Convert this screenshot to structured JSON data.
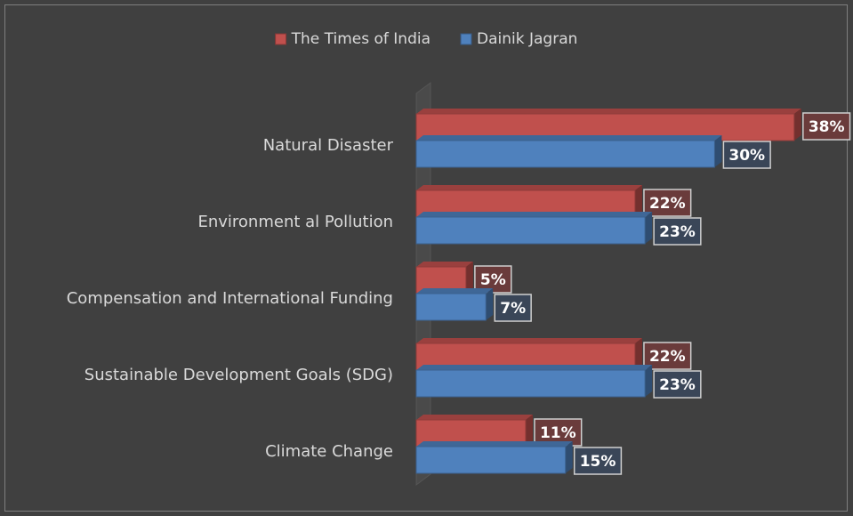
{
  "chart_data": {
    "type": "bar",
    "orientation": "horizontal",
    "categories": [
      "Natural Disaster",
      "Environment al Pollution",
      "Compensation and International Funding",
      "Sustainable Development Goals (SDG)",
      "Climate Change"
    ],
    "series": [
      {
        "name": "The Times of India",
        "color": "#c0504d",
        "values": [
          38,
          22,
          5,
          22,
          11
        ],
        "value_labels": [
          "38%",
          "22%",
          "5%",
          "22%",
          "11%"
        ]
      },
      {
        "name": "Dainik Jagran",
        "color": "#4f81bd",
        "values": [
          30,
          23,
          7,
          23,
          15
        ],
        "value_labels": [
          "30%",
          "23%",
          "7%",
          "23%",
          "15%"
        ]
      }
    ],
    "legend": "top"
  }
}
